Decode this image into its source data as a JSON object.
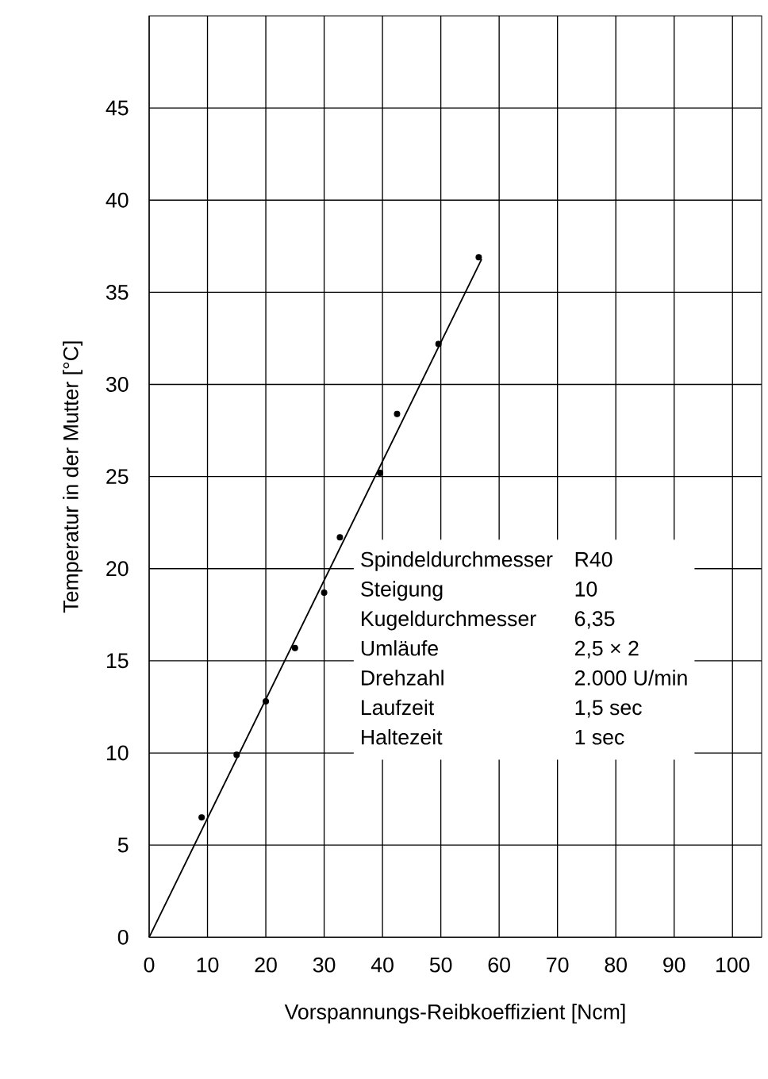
{
  "chart_data": {
    "type": "scatter",
    "xlabel": "Vorspannungs-Reibkoeffizient [Ncm]",
    "ylabel": "Temperatur in der Mutter [°C]",
    "xlim": [
      0,
      105
    ],
    "ylim": [
      0,
      50
    ],
    "xticks": [
      0,
      10,
      20,
      30,
      40,
      50,
      60,
      70,
      80,
      90,
      100
    ],
    "yticks": [
      0,
      5,
      10,
      15,
      20,
      25,
      30,
      35,
      40,
      45
    ],
    "grid": true,
    "series": [
      {
        "color": "#000000",
        "marker": "circle",
        "x": [
          9,
          15,
          20,
          25,
          30,
          32.7,
          39.6,
          42.5,
          49.6,
          56.5
        ],
        "values": [
          6.5,
          9.9,
          12.8,
          15.7,
          18.7,
          21.7,
          25.2,
          28.4,
          32.2,
          36.9
        ]
      },
      {
        "type": "line",
        "color": "#000000",
        "marker": "none",
        "line_style": "solid",
        "x": [
          0,
          57
        ],
        "values": [
          0,
          36.8
        ]
      }
    ],
    "annotations": [
      "Spindeldurchmesser",
      "R40",
      "Steigung",
      "10",
      "Kugeldurchmesser",
      "6,35",
      "Umläufe",
      "2,5 × 2",
      "Drehzahl",
      "2.000 U/min",
      "Laufzeit",
      "1,5 sec",
      "Haltezeit",
      "1 sec"
    ]
  }
}
